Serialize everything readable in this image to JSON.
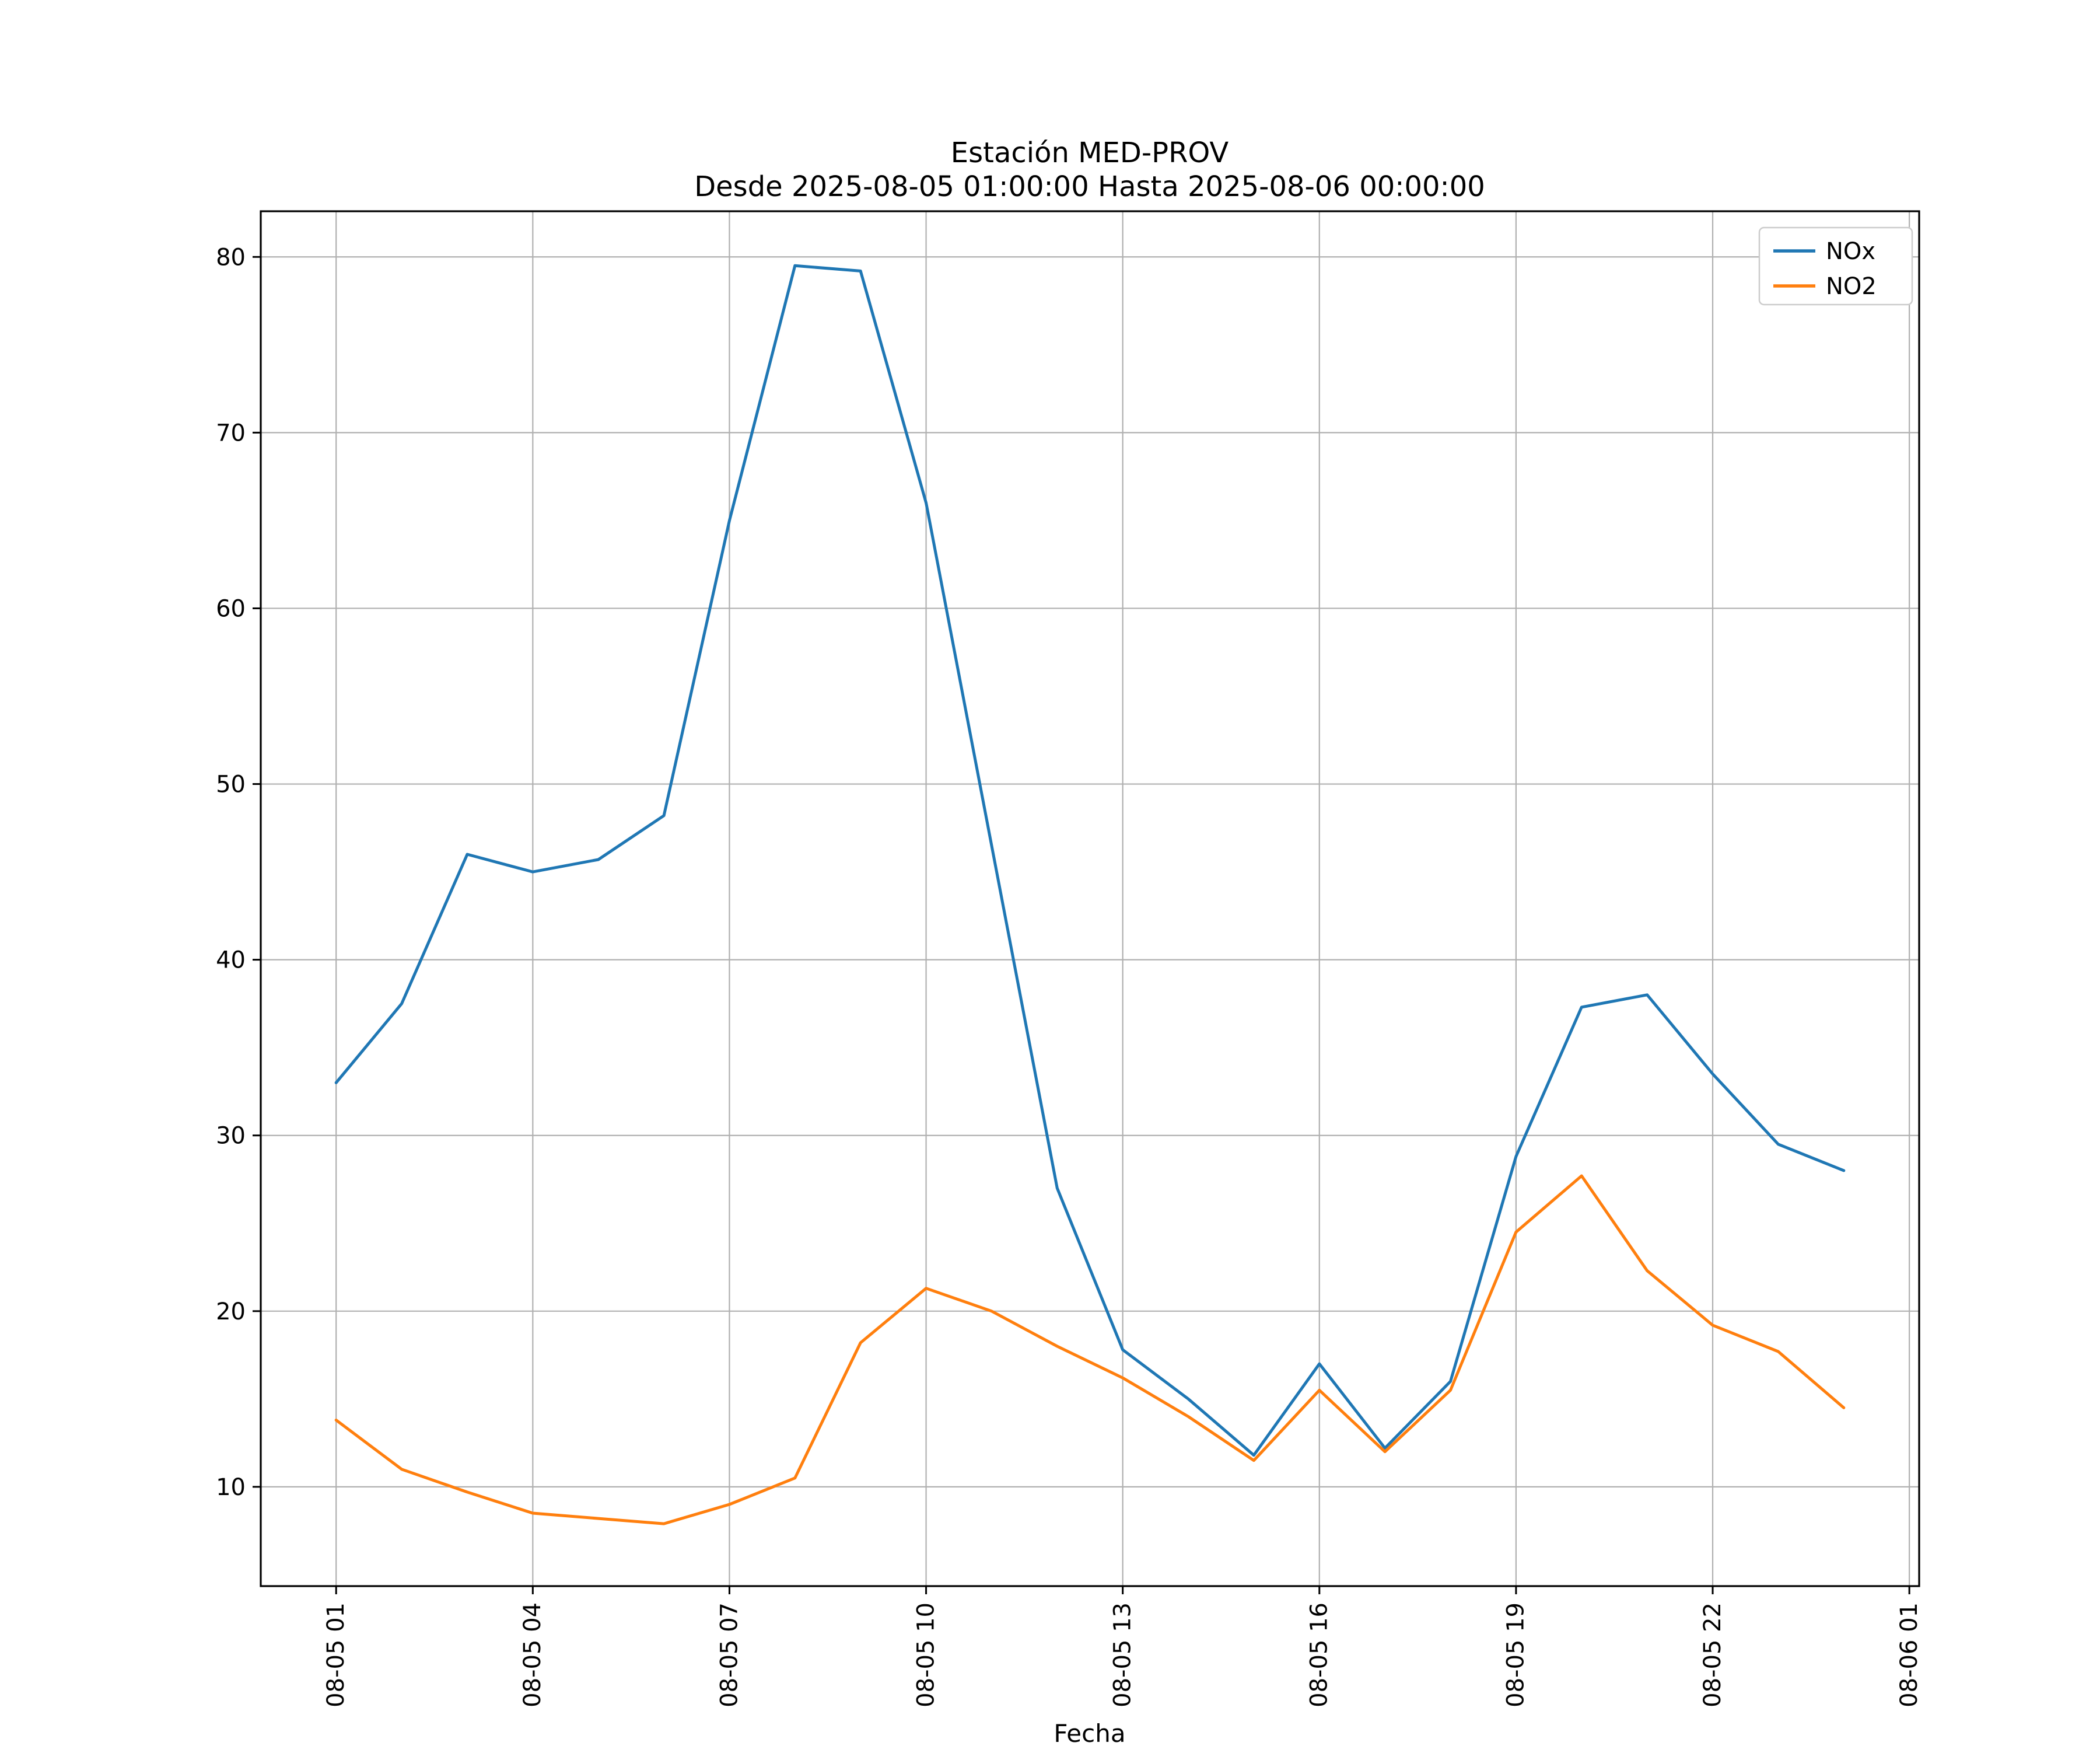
{
  "chart_data": {
    "type": "line",
    "title": "Estación MED-PROV",
    "subtitle": "Desde 2025-08-05 01:00:00 Hasta 2025-08-06 00:00:00",
    "xlabel": "Fecha",
    "ylabel": "",
    "grid": true,
    "legend_position": "upper right",
    "grid_color": "#b0b0b0",
    "axis_color": "#000000",
    "xlim": [
      -0.15,
      25.15
    ],
    "ylim": [
      4.35,
      82.6
    ],
    "x_hours": [
      1,
      2,
      3,
      4,
      5,
      6,
      7,
      8,
      9,
      10,
      11,
      12,
      13,
      14,
      15,
      16,
      17,
      18,
      19,
      20,
      21,
      22,
      23,
      24
    ],
    "x_ticks": [
      {
        "hour": 1,
        "label": "08-05 01"
      },
      {
        "hour": 4,
        "label": "08-05 04"
      },
      {
        "hour": 7,
        "label": "08-05 07"
      },
      {
        "hour": 10,
        "label": "08-05 10"
      },
      {
        "hour": 13,
        "label": "08-05 13"
      },
      {
        "hour": 16,
        "label": "08-05 16"
      },
      {
        "hour": 19,
        "label": "08-05 19"
      },
      {
        "hour": 22,
        "label": "08-05 22"
      },
      {
        "hour": 25,
        "label": "08-06 01"
      }
    ],
    "y_ticks": [
      10,
      20,
      30,
      40,
      50,
      60,
      70,
      80
    ],
    "series": [
      {
        "name": "NOx",
        "color": "#1f77b4",
        "values": [
          33,
          37.5,
          46,
          45,
          45.7,
          48.2,
          65,
          79.5,
          79.2,
          66,
          46.5,
          27,
          17.8,
          15,
          11.8,
          17,
          12.2,
          16,
          28.8,
          37.3,
          38,
          33.5,
          29.5,
          28
        ]
      },
      {
        "name": "NO2",
        "color": "#ff7f0e",
        "values": [
          13.8,
          11,
          9.7,
          8.5,
          8.2,
          7.9,
          9,
          10.5,
          18.2,
          21.3,
          20,
          18,
          16.2,
          14,
          11.5,
          15.5,
          12,
          15.5,
          24.5,
          27.7,
          22.3,
          19.2,
          17.7,
          14.5
        ]
      }
    ]
  }
}
